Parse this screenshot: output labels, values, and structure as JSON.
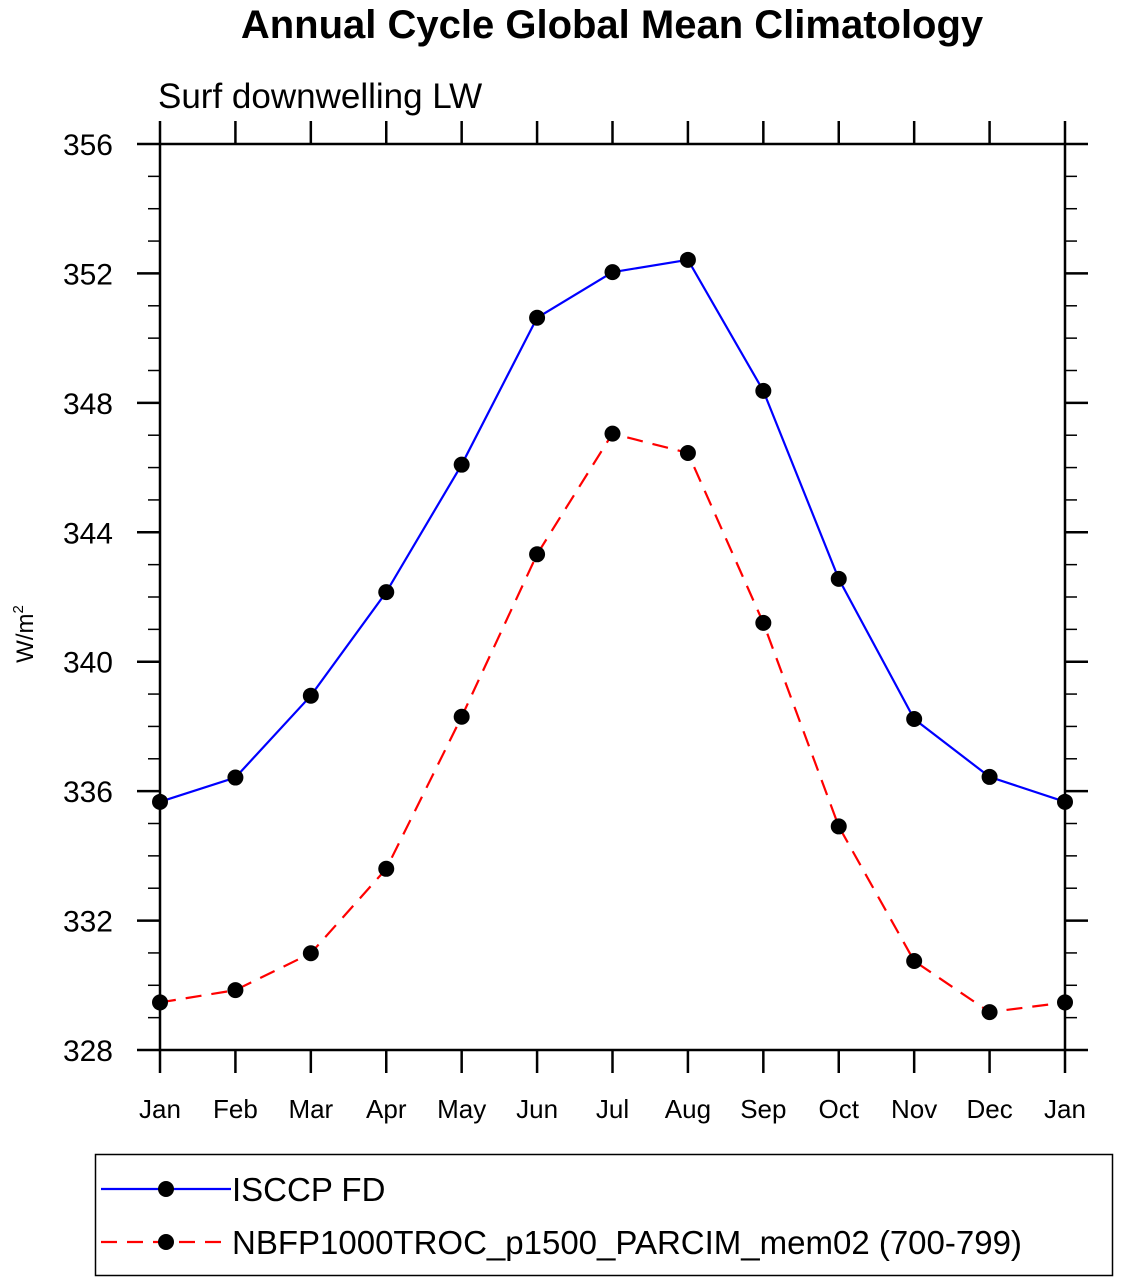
{
  "chart_data": {
    "type": "line",
    "title": "Annual Cycle Global Mean Climatology",
    "subtitle": "Surf downwelling LW",
    "xlabel": "",
    "ylabel": "W/m",
    "ylabel_superscript": "2",
    "categories": [
      "Jan",
      "Feb",
      "Mar",
      "Apr",
      "May",
      "Jun",
      "Jul",
      "Aug",
      "Sep",
      "Oct",
      "Nov",
      "Dec",
      "Jan"
    ],
    "ylim": [
      328,
      356
    ],
    "yticks": [
      328,
      332,
      336,
      340,
      344,
      348,
      352,
      356
    ],
    "ytick_labels": [
      "328",
      "332",
      "336",
      "340",
      "344",
      "348",
      "352",
      "356"
    ],
    "yminor_step": 1,
    "grid": false,
    "legend_position": "bottom",
    "series": [
      {
        "name": "ISCCP FD",
        "color": "#0000ff",
        "line_style": "solid",
        "marker": "filled-circle",
        "marker_color": "#000000",
        "values": [
          335.67,
          336.42,
          338.95,
          342.15,
          346.09,
          350.63,
          352.04,
          352.42,
          348.37,
          342.56,
          338.23,
          336.44,
          335.67
        ]
      },
      {
        "name": "NBFP1000TROC_p1500_PARCIM_mem02 (700-799)",
        "color": "#ff0000",
        "line_style": "dashed",
        "marker": "filled-circle",
        "marker_color": "#000000",
        "values": [
          329.47,
          329.85,
          330.99,
          333.6,
          338.3,
          343.32,
          347.05,
          346.45,
          341.2,
          334.91,
          330.75,
          329.17,
          329.47
        ]
      }
    ]
  }
}
